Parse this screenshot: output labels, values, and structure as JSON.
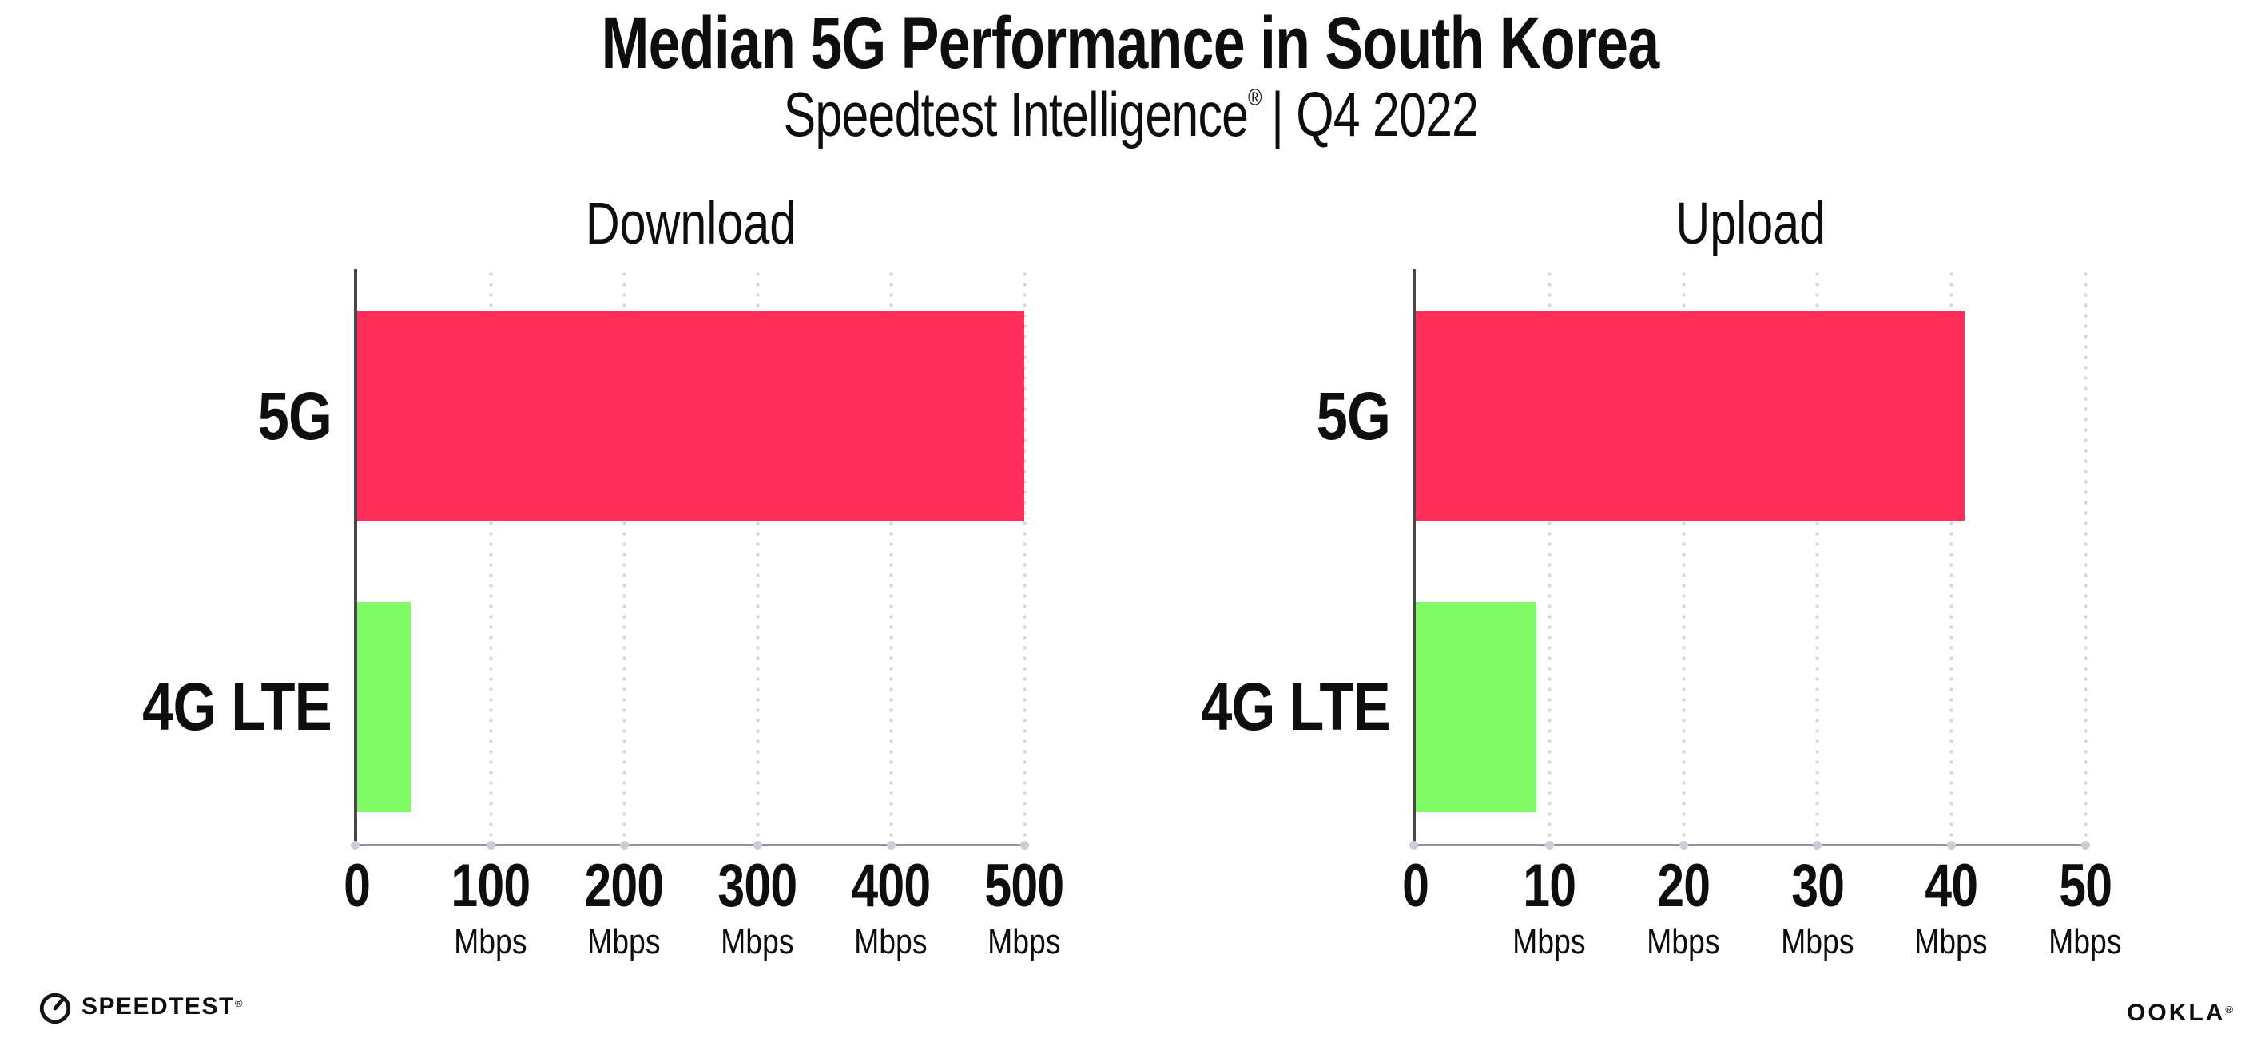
{
  "header": {
    "title": "Median 5G Performance in South Korea",
    "subtitle_brand": "Speedtest Intelligence",
    "subtitle_reg": "®",
    "subtitle_rest": "| Q4 2022"
  },
  "colors": {
    "bar_5g": "#ff2d59",
    "bar_4g_lte": "#82fa68",
    "gridline": "#d6d6e0",
    "x_axis": "#95959e",
    "y_axis": "#47474c",
    "text": "#0e0e0e"
  },
  "chart_data": [
    {
      "type": "bar",
      "orientation": "horizontal",
      "title": "Download",
      "categories": [
        "5G",
        "4G LTE"
      ],
      "values": [
        500,
        40
      ],
      "unit": "Mbps",
      "xlim": [
        0,
        500
      ],
      "xticks": [
        0,
        100,
        200,
        300,
        400,
        500
      ],
      "ticks": [
        {
          "label": "0",
          "unit": ""
        },
        {
          "label": "100",
          "unit": "Mbps"
        },
        {
          "label": "200",
          "unit": "Mbps"
        },
        {
          "label": "300",
          "unit": "Mbps"
        },
        {
          "label": "400",
          "unit": "Mbps"
        },
        {
          "label": "500",
          "unit": "Mbps"
        }
      ],
      "colors": [
        "#ff2d59",
        "#82fa68"
      ],
      "grid": true,
      "gridline_style": "dotted-vertical",
      "legend": "none"
    },
    {
      "type": "bar",
      "orientation": "horizontal",
      "title": "Upload",
      "categories": [
        "5G",
        "4G LTE"
      ],
      "values": [
        41,
        9
      ],
      "unit": "Mbps",
      "xlim": [
        0,
        50
      ],
      "xticks": [
        0,
        10,
        20,
        30,
        40,
        50
      ],
      "ticks": [
        {
          "label": "0",
          "unit": ""
        },
        {
          "label": "10",
          "unit": "Mbps"
        },
        {
          "label": "20",
          "unit": "Mbps"
        },
        {
          "label": "30",
          "unit": "Mbps"
        },
        {
          "label": "40",
          "unit": "Mbps"
        },
        {
          "label": "50",
          "unit": "Mbps"
        }
      ],
      "colors": [
        "#ff2d59",
        "#82fa68"
      ],
      "grid": true,
      "gridline_style": "dotted-vertical",
      "legend": "none"
    }
  ],
  "footer": {
    "speedtest_text": "SPEEDTEST",
    "speedtest_reg": "®",
    "ookla_text": "OOKLA",
    "ookla_reg": "®"
  }
}
